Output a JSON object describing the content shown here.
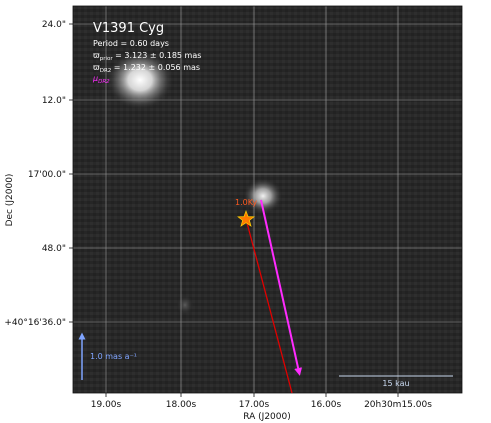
{
  "figure": {
    "title": "V1391 Cyg",
    "period_text": "Period =   0.60 days",
    "parallax_prior": {
      "symbol": "ϖ",
      "subscript": "prior",
      "text": " = 3.123 ± 0.185 mas"
    },
    "parallax_dr2": {
      "symbol": "ϖ",
      "subscript": "DR2",
      "text": " = 1.232 ± 0.056 mas"
    },
    "mu_label": {
      "symbol": "μ",
      "subscript": "DR2"
    },
    "scale_arrow_label": "1.0 mas a⁻¹",
    "scale_bar_label": "15 kau",
    "epoch_label": "1.0Ky",
    "xlabel": "RA (J2000)",
    "ylabel": "Dec (J2000)",
    "x_ticks": [
      "19.00s",
      "18.00s",
      "17.00s",
      "16.00s",
      "20h30m15.00s"
    ],
    "y_ticks": [
      "24.0\"",
      "12.0\"",
      "17'00.0\"",
      "48.0\"",
      "+40°16'36.0\""
    ]
  },
  "colors": {
    "background": "#262626",
    "grid": "#bdbdbd",
    "pm_arrow": "#ff2bff",
    "track": "#e00000",
    "star_fill": "#ff7a00",
    "star_edge": "#ffd000",
    "scale_arrow": "#7fa4ff",
    "scale_bar": "#c9d9f0"
  }
}
